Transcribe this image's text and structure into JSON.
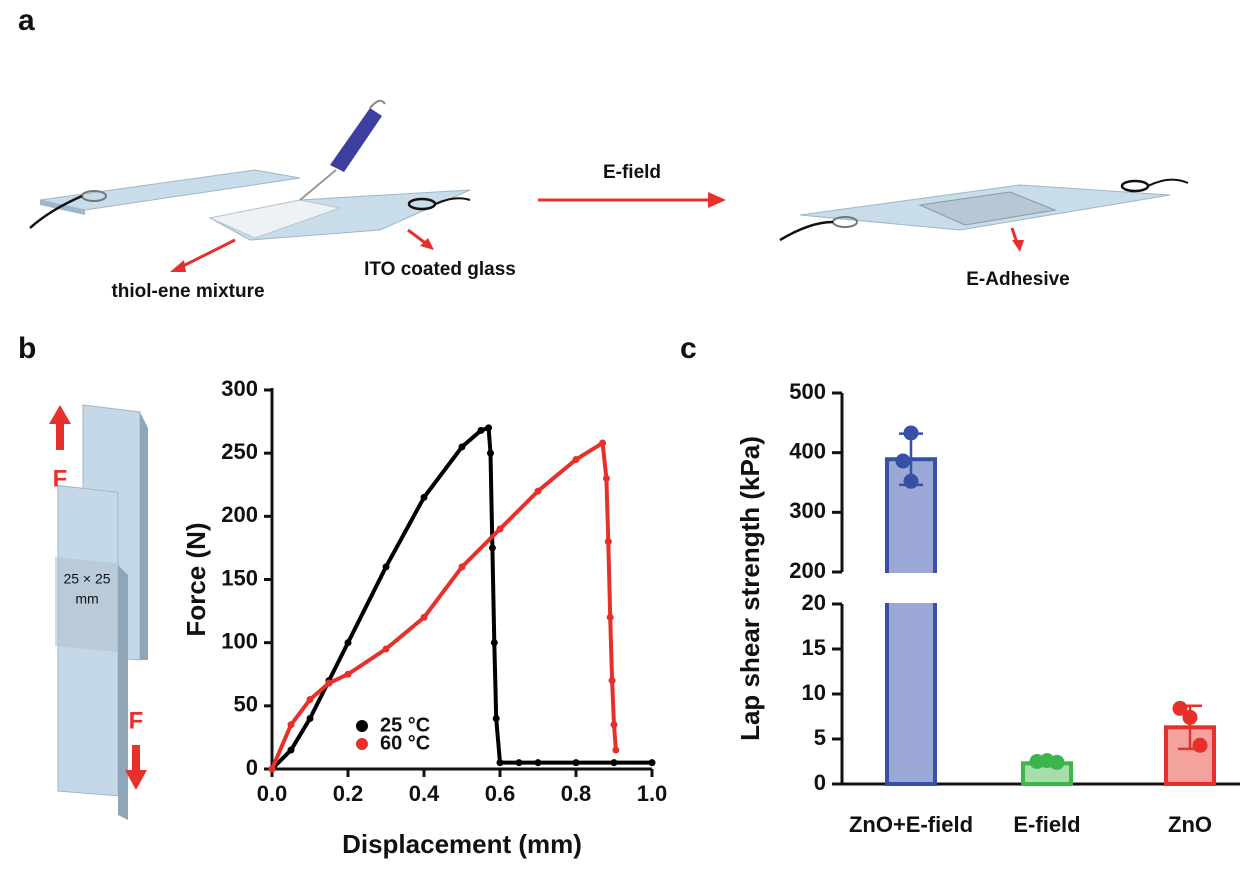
{
  "panel_labels": [
    "a",
    "b",
    "c"
  ],
  "diagram": {
    "arrow_label": "E-field",
    "mixture_label": "thiol-ene mixture",
    "glass_label": "ITO coated glass",
    "adhesive_label": "E-Adhesive",
    "force_top": "F",
    "force_bottom": "F",
    "area_label": "25 × 25",
    "area_unit": "mm"
  },
  "chart_data": [
    {
      "type": "line",
      "xlabel": "Displacement (mm)",
      "ylabel": "Force (N)",
      "xlim": [
        0,
        1
      ],
      "ylim": [
        0,
        300
      ],
      "xticks": [
        {
          "value": 0,
          "label": "0.0"
        },
        0.2,
        0.4,
        0.6,
        0.8,
        {
          "value": 1,
          "label": "1.0"
        }
      ],
      "yticks": [
        0,
        50,
        100,
        150,
        200,
        250,
        300
      ],
      "legend": "lower center",
      "series": [
        {
          "name": "25 °C",
          "color": "#000000",
          "x": [
            0,
            0.05,
            0.1,
            0.15,
            0.2,
            0.3,
            0.4,
            0.5,
            0.55,
            0.57,
            0.575,
            0.58,
            0.585,
            0.59,
            0.6,
            0.65,
            0.7,
            0.8,
            0.9,
            1.0
          ],
          "values": [
            0,
            15,
            40,
            70,
            100,
            160,
            215,
            255,
            268,
            270,
            250,
            175,
            100,
            40,
            5,
            5,
            5,
            5,
            5,
            5
          ]
        },
        {
          "name": "60 °C",
          "color": "#e8302a",
          "x": [
            0,
            0.05,
            0.1,
            0.15,
            0.2,
            0.3,
            0.4,
            0.5,
            0.6,
            0.7,
            0.8,
            0.87,
            0.88,
            0.885,
            0.89,
            0.895,
            0.9,
            0.905
          ],
          "values": [
            0,
            35,
            55,
            68,
            75,
            95,
            120,
            160,
            190,
            220,
            245,
            258,
            230,
            180,
            120,
            70,
            35,
            15
          ]
        }
      ]
    },
    {
      "type": "bar",
      "ylabel": "Lap shear strength (kPa)",
      "categories": [
        "ZnO+E-field",
        "E-field",
        "ZnO"
      ],
      "values": [
        389,
        2.3,
        6.3
      ],
      "errors": [
        43,
        0.3,
        2.4
      ],
      "points": [
        [
          433,
          386,
          352
        ],
        [
          2.5,
          2.6,
          2.4
        ],
        [
          8.4,
          7.4,
          4.3
        ]
      ],
      "colors": [
        "#3650a6",
        "#3cb64a",
        "#e8302a"
      ],
      "fill_colors": [
        "#9ba8d6",
        "#a6dda9",
        "#f3a29e"
      ],
      "ylim": [
        0,
        500
      ],
      "axis_break": [
        20,
        200
      ],
      "yticks": [
        0,
        5,
        10,
        15,
        20,
        200,
        300,
        400,
        500
      ]
    }
  ]
}
